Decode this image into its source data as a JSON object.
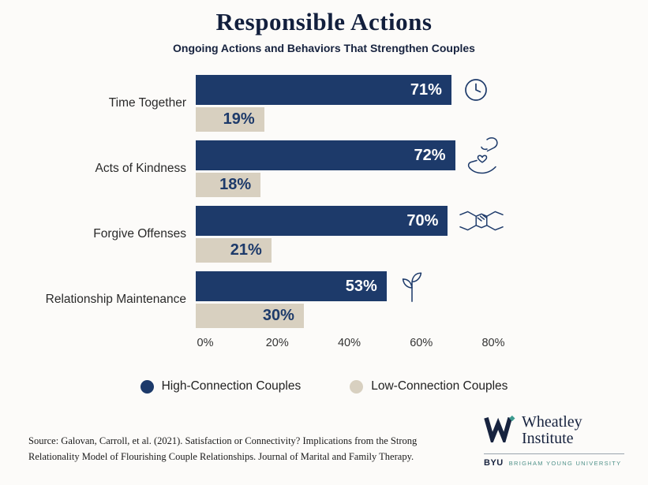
{
  "page": {
    "title": "Responsible Actions",
    "subtitle": "Ongoing Actions and Behaviors That Strengthen Couples"
  },
  "chart_data": {
    "type": "bar",
    "orientation": "horizontal",
    "title": "Responsible Actions",
    "subtitle": "Ongoing Actions and Behaviors That Strengthen Couples",
    "categories": [
      "Time Together",
      "Acts of Kindness",
      "Forgive Offenses",
      "Relationship Maintenance"
    ],
    "series": [
      {
        "name": "High-Connection Couples",
        "color": "#1d3a6a",
        "values": [
          71,
          72,
          70,
          53
        ]
      },
      {
        "name": "Low-Connection Couples",
        "color": "#d8d0c0",
        "values": [
          19,
          18,
          21,
          30
        ]
      }
    ],
    "x_axis": {
      "ticks": [
        "0%",
        "20%",
        "40%",
        "60%",
        "80%"
      ],
      "max": 80,
      "grid": false
    },
    "legend_position": "bottom",
    "rows": [
      {
        "label": "Time Together",
        "high": 71,
        "high_label": "71%",
        "low": 19,
        "low_label": "19%",
        "icon": "clock-icon"
      },
      {
        "label": "Acts of Kindness",
        "high": 72,
        "high_label": "72%",
        "low": 18,
        "low_label": "18%",
        "icon": "hands-heart-icon"
      },
      {
        "label": "Forgive Offenses",
        "high": 70,
        "high_label": "70%",
        "low": 21,
        "low_label": "21%",
        "icon": "handshake-icon"
      },
      {
        "label": "Relationship Maintenance",
        "high": 53,
        "high_label": "53%",
        "low": 30,
        "low_label": "30%",
        "icon": "sprout-icon"
      }
    ]
  },
  "legend": {
    "items": [
      {
        "label": "High-Connection Couples",
        "color": "#1d3a6a"
      },
      {
        "label": "Low-Connection Couples",
        "color": "#d8d0c0"
      }
    ]
  },
  "footer": {
    "source": "Source: Galovan, Carroll, et al. (2021). Satisfaction or Connectivity? Implications from the Strong Relationality Model of Flourishing Couple Relationships. Journal of Marital and Family Therapy.",
    "logo": {
      "name_line1": "Wheatley",
      "name_line2": "Institute",
      "byu": "BYU",
      "university": "BRIGHAM YOUNG UNIVERSITY"
    }
  },
  "colors": {
    "navy": "#1d3a6a",
    "beige": "#d8d0c0",
    "teal": "#3d9b8f",
    "title_navy": "#121f3d"
  }
}
